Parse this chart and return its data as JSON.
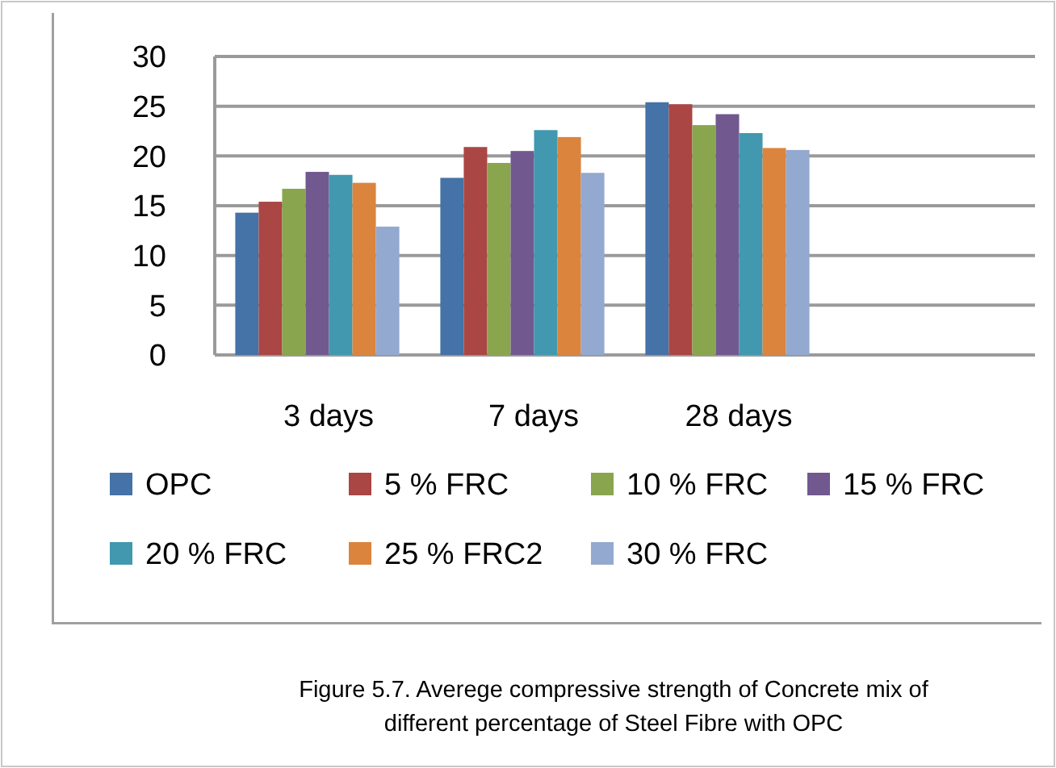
{
  "chart_data": {
    "type": "bar",
    "categories": [
      "3 days",
      "7 days",
      "28 days",
      null
    ],
    "series": [
      {
        "name": "OPC",
        "color": "#4572a7",
        "values": [
          14.3,
          17.8,
          25.4,
          null
        ]
      },
      {
        "name": "5 % FRC",
        "color": "#aa4643",
        "values": [
          15.4,
          20.9,
          25.2,
          null
        ]
      },
      {
        "name": "10 % FRC",
        "color": "#89a54e",
        "values": [
          16.7,
          19.3,
          23.1,
          null
        ]
      },
      {
        "name": "15 % FRC",
        "color": "#71588f",
        "values": [
          18.4,
          20.5,
          24.2,
          null
        ]
      },
      {
        "name": "20 % FRC",
        "color": "#4198af",
        "values": [
          18.1,
          22.6,
          22.3,
          null
        ]
      },
      {
        "name": "25 % FRC2",
        "color": "#db843d",
        "values": [
          17.3,
          21.9,
          20.8,
          null
        ]
      },
      {
        "name": "30 % FRC",
        "color": "#93a9cf",
        "values": [
          12.9,
          18.3,
          20.6,
          null
        ]
      }
    ],
    "ylim": [
      0,
      30
    ],
    "yticks": [
      0,
      5,
      10,
      15,
      20,
      25,
      30
    ],
    "grid": "y",
    "legend": "bottom",
    "annotations": [
      "Figure 5.7. Averege compressive strength of Concrete mix of different percentage of Steel Fibre with OPC"
    ]
  }
}
